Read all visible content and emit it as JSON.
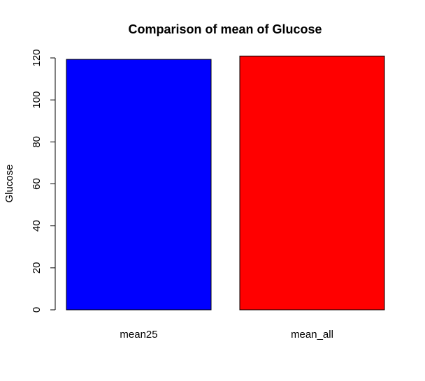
{
  "chart_data": {
    "type": "bar",
    "title": "Comparison of mean of Glucose",
    "xlabel": "",
    "ylabel": "Glucose",
    "categories": [
      "mean25",
      "mean_all"
    ],
    "values": [
      119.3,
      120.9
    ],
    "colors": [
      "#0000ff",
      "#ff0000"
    ],
    "ylim": [
      0,
      120
    ],
    "yticks": [
      0,
      20,
      40,
      60,
      80,
      100,
      120
    ],
    "grid": false,
    "legend": "none"
  }
}
